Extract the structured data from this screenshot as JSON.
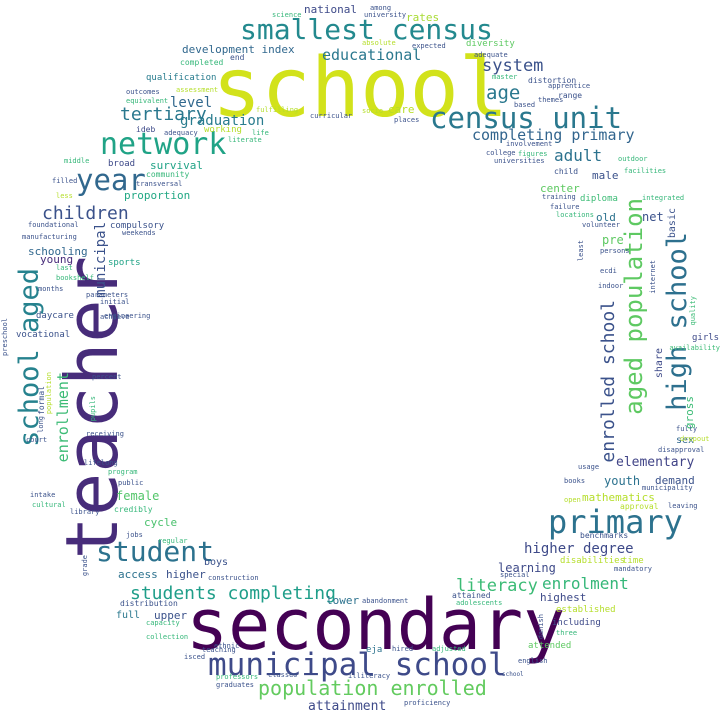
{
  "cloud": {
    "words": [
      {
        "t": "school",
        "c": "#d2e21b"
      },
      {
        "t": "secondary",
        "c": "#440154"
      },
      {
        "t": "teacher",
        "c": "#472c7a"
      },
      {
        "t": "municipal school",
        "c": "#3e4a89"
      },
      {
        "t": "census unit",
        "c": "#2a788e"
      },
      {
        "t": "smallest census",
        "c": "#23898e"
      },
      {
        "t": "primary",
        "c": "#2c728e"
      },
      {
        "t": "student",
        "c": "#2c728e"
      },
      {
        "t": "network",
        "c": "#20a386"
      },
      {
        "t": "year",
        "c": "#31688e"
      },
      {
        "t": "school aged",
        "c": "#26828e"
      },
      {
        "t": "high school",
        "c": "#2d708e"
      },
      {
        "t": "aged population",
        "c": "#5ec962"
      },
      {
        "t": "enrolled school",
        "c": "#3b528b"
      },
      {
        "t": "population enrolled",
        "c": "#63cb5f"
      },
      {
        "t": "students completing",
        "c": "#1f9e89"
      },
      {
        "t": "children",
        "c": "#3b528b"
      },
      {
        "t": "tertiary",
        "c": "#2a788e"
      },
      {
        "t": "completing primary",
        "c": "#32658e"
      },
      {
        "t": "literacy",
        "c": "#3bbb75"
      },
      {
        "t": "enrolment",
        "c": "#35b779"
      },
      {
        "t": "enrollment",
        "c": "#3bbb75"
      },
      {
        "t": "age",
        "c": "#2a788e"
      },
      {
        "t": "system",
        "c": "#3b528b"
      },
      {
        "t": "adult",
        "c": "#2c728e"
      },
      {
        "t": "educational",
        "c": "#2a788e"
      },
      {
        "t": "higher degree",
        "c": "#3e4a89"
      },
      {
        "t": "municipal",
        "c": "#3b528b"
      },
      {
        "t": "graduation",
        "c": "#287c8e"
      },
      {
        "t": "elementary",
        "c": "#414487"
      },
      {
        "t": "level",
        "c": "#31688e"
      },
      {
        "t": "attainment",
        "c": "#3e4a89"
      },
      {
        "t": "development index",
        "c": "#31688e"
      },
      {
        "t": "female",
        "c": "#52c569"
      },
      {
        "t": "pre",
        "c": "#5ec962"
      },
      {
        "t": "net",
        "c": "#3b528b"
      },
      {
        "t": "youth",
        "c": "#2c728e"
      },
      {
        "t": "learning",
        "c": "#3e4a89"
      },
      {
        "t": "highest",
        "c": "#3e4a89"
      },
      {
        "t": "schooling",
        "c": "#31688e"
      },
      {
        "t": "lower",
        "c": "#2c728e"
      },
      {
        "t": "upper",
        "c": "#3b528b"
      },
      {
        "t": "access",
        "c": "#2c728e"
      },
      {
        "t": "higher",
        "c": "#3b528b"
      },
      {
        "t": "cycle",
        "c": "#4ac16d"
      },
      {
        "t": "national",
        "c": "#3e4a89"
      },
      {
        "t": "center",
        "c": "#5ec962"
      },
      {
        "t": "rates",
        "c": "#a8db34"
      },
      {
        "t": "care",
        "c": "#b8de29"
      },
      {
        "t": "full",
        "c": "#2a788e"
      },
      {
        "t": "survival",
        "c": "#20a386"
      },
      {
        "t": "proportion",
        "c": "#22a884"
      },
      {
        "t": "mathematics",
        "c": "#b5de2b"
      },
      {
        "t": "demand",
        "c": "#3b528b"
      },
      {
        "t": "boys",
        "c": "#3b528b"
      },
      {
        "t": "sex",
        "c": "#31688e"
      },
      {
        "t": "old",
        "c": "#2c728e"
      },
      {
        "t": "young",
        "c": "#472c7a"
      },
      {
        "t": "male",
        "c": "#3b528b"
      },
      {
        "t": "gross",
        "c": "#3bbb75"
      },
      {
        "t": "basic",
        "c": "#3b528b"
      },
      {
        "t": "share",
        "c": "#3e4a89"
      },
      {
        "t": "qualification",
        "c": "#287c8e"
      },
      {
        "t": "compulsory",
        "c": "#3b528b"
      },
      {
        "t": "working",
        "c": "#b5de2b"
      },
      {
        "t": "including",
        "c": "#3e4a89"
      },
      {
        "t": "ideb",
        "c": "#3e4a89"
      },
      {
        "t": "broad",
        "c": "#3e4a89"
      },
      {
        "t": "daycare",
        "c": "#3b528b"
      },
      {
        "t": "vocational",
        "c": "#3b528b"
      },
      {
        "t": "sports",
        "c": "#20a386"
      },
      {
        "t": "distribution",
        "c": "#3b528b"
      },
      {
        "t": "diploma",
        "c": "#3bbb75"
      },
      {
        "t": "attended",
        "c": "#5ec962"
      },
      {
        "t": "established",
        "c": "#b5de2b"
      },
      {
        "t": "diversity",
        "c": "#5ec962"
      },
      {
        "t": "distortion",
        "c": "#3b528b"
      },
      {
        "t": "range",
        "c": "#3b528b"
      },
      {
        "t": "completed",
        "c": "#35b779"
      },
      {
        "t": "end",
        "c": "#3b528b"
      },
      {
        "t": "eja",
        "c": "#2c728e"
      },
      {
        "t": "transversal",
        "c": "#3b528b"
      },
      {
        "t": "community",
        "c": "#35b779"
      },
      {
        "t": "foundational",
        "c": "#3b528b"
      },
      {
        "t": "manufacturing",
        "c": "#3b528b"
      },
      {
        "t": "filled",
        "c": "#3b528b"
      },
      {
        "t": "weekends",
        "c": "#3b528b"
      },
      {
        "t": "credibly",
        "c": "#35b779"
      },
      {
        "t": "benchmarks",
        "c": "#3b528b"
      },
      {
        "t": "disabilities",
        "c": "#b5de2b"
      },
      {
        "t": "time",
        "c": "#b5de2b"
      },
      {
        "t": "mandatory",
        "c": "#3b528b"
      },
      {
        "t": "approval",
        "c": "#b5de2b"
      },
      {
        "t": "leaving",
        "c": "#3b528b"
      },
      {
        "t": "municipality",
        "c": "#3b528b"
      },
      {
        "t": "disapproval",
        "c": "#3b528b"
      },
      {
        "t": "books",
        "c": "#3b528b"
      },
      {
        "t": "usage",
        "c": "#3b528b"
      },
      {
        "t": "open",
        "c": "#b5de2b"
      },
      {
        "t": "fully",
        "c": "#3b528b"
      },
      {
        "t": "dropout",
        "c": "#b5de2b"
      },
      {
        "t": "girls",
        "c": "#3e4a89"
      },
      {
        "t": "availability",
        "c": "#3bbb75"
      },
      {
        "t": "quality",
        "c": "#3bbb75"
      },
      {
        "t": "persons",
        "c": "#3b528b"
      },
      {
        "t": "volunteer",
        "c": "#3b528b"
      },
      {
        "t": "locations",
        "c": "#35b779"
      },
      {
        "t": "failure",
        "c": "#3b528b"
      },
      {
        "t": "training",
        "c": "#3b528b"
      },
      {
        "t": "child",
        "c": "#3b528b"
      },
      {
        "t": "integrated",
        "c": "#35b779"
      },
      {
        "t": "facilities",
        "c": "#35b779"
      },
      {
        "t": "outdoor",
        "c": "#35b779"
      },
      {
        "t": "college",
        "c": "#3b528b"
      },
      {
        "t": "figures",
        "c": "#35b779"
      },
      {
        "t": "universities",
        "c": "#3b528b"
      },
      {
        "t": "involvement",
        "c": "#3b528b"
      },
      {
        "t": "places",
        "c": "#3b528b"
      },
      {
        "t": "socio",
        "c": "#b5de2b"
      },
      {
        "t": "based",
        "c": "#3b528b"
      },
      {
        "t": "themes",
        "c": "#3b528b"
      },
      {
        "t": "apprentice",
        "c": "#3b528b"
      },
      {
        "t": "master",
        "c": "#35b779"
      },
      {
        "t": "adequate",
        "c": "#3b528b"
      },
      {
        "t": "expected",
        "c": "#3b528b"
      },
      {
        "t": "absolute",
        "c": "#b5de2b"
      },
      {
        "t": "among",
        "c": "#3b528b"
      },
      {
        "t": "university",
        "c": "#3b528b"
      },
      {
        "t": "science",
        "c": "#35b779"
      },
      {
        "t": "curricular",
        "c": "#3b528b"
      },
      {
        "t": "fulfilling",
        "c": "#b5de2b"
      },
      {
        "t": "life",
        "c": "#35b779"
      },
      {
        "t": "literate",
        "c": "#35b779"
      },
      {
        "t": "adequacy",
        "c": "#3b528b"
      },
      {
        "t": "outcomes",
        "c": "#3b528b"
      },
      {
        "t": "equivalent",
        "c": "#35b779"
      },
      {
        "t": "assessment",
        "c": "#b5de2b"
      },
      {
        "t": "middle",
        "c": "#35b779"
      },
      {
        "t": "less",
        "c": "#b5de2b"
      },
      {
        "t": "last",
        "c": "#35b779"
      },
      {
        "t": "bookshelf",
        "c": "#35b779"
      },
      {
        "t": "months",
        "c": "#3b528b"
      },
      {
        "t": "parameters",
        "c": "#3b528b"
      },
      {
        "t": "initial",
        "c": "#3b528b"
      },
      {
        "t": "achieve",
        "c": "#3b528b"
      },
      {
        "t": "preschool",
        "c": "#3b528b"
      },
      {
        "t": "formal",
        "c": "#3b528b"
      },
      {
        "t": "long",
        "c": "#3b528b"
      },
      {
        "t": "population",
        "c": "#b5de2b"
      },
      {
        "t": "percent",
        "c": "#3b528b"
      },
      {
        "t": "pupils",
        "c": "#35b779"
      },
      {
        "t": "court",
        "c": "#3b528b"
      },
      {
        "t": "receiving",
        "c": "#3b528b"
      },
      {
        "t": "lifelong",
        "c": "#3b528b"
      },
      {
        "t": "program",
        "c": "#35b779"
      },
      {
        "t": "public",
        "c": "#3b528b"
      },
      {
        "t": "intake",
        "c": "#3b528b"
      },
      {
        "t": "cultural",
        "c": "#35b779"
      },
      {
        "t": "library",
        "c": "#3b528b"
      },
      {
        "t": "jobs",
        "c": "#3b528b"
      },
      {
        "t": "grade",
        "c": "#3b528b"
      },
      {
        "t": "regular",
        "c": "#35b779"
      },
      {
        "t": "construction",
        "c": "#3b528b"
      },
      {
        "t": "capacity",
        "c": "#35b779"
      },
      {
        "t": "engineering",
        "c": "#3b528b"
      },
      {
        "t": "collection",
        "c": "#35b779"
      },
      {
        "t": "ethnic",
        "c": "#3b528b"
      },
      {
        "t": "isced",
        "c": "#3b528b"
      },
      {
        "t": "teaching",
        "c": "#3b528b"
      },
      {
        "t": "classes",
        "c": "#3b528b"
      },
      {
        "t": "illiteracy",
        "c": "#3b528b"
      },
      {
        "t": "graduates",
        "c": "#3b528b"
      },
      {
        "t": "professors",
        "c": "#35b779"
      },
      {
        "t": "proficiency",
        "c": "#3b528b"
      },
      {
        "t": "hired",
        "c": "#3b528b"
      },
      {
        "t": "adjusted",
        "c": "#35b779"
      },
      {
        "t": "abandonment",
        "c": "#3b528b"
      },
      {
        "t": "attained",
        "c": "#3b528b"
      },
      {
        "t": "adolescents",
        "c": "#35b779"
      },
      {
        "t": "special",
        "c": "#3b528b"
      },
      {
        "t": "danish",
        "c": "#3b528b"
      },
      {
        "t": "three",
        "c": "#35b779"
      },
      {
        "t": "english",
        "c": "#3b528b"
      },
      {
        "t": "school",
        "c": "#3b528b"
      },
      {
        "t": "indoor",
        "c": "#3b528b"
      },
      {
        "t": "ecdi",
        "c": "#3b528b"
      },
      {
        "t": "internet",
        "c": "#3b528b"
      },
      {
        "t": "least",
        "c": "#3b528b"
      }
    ]
  }
}
